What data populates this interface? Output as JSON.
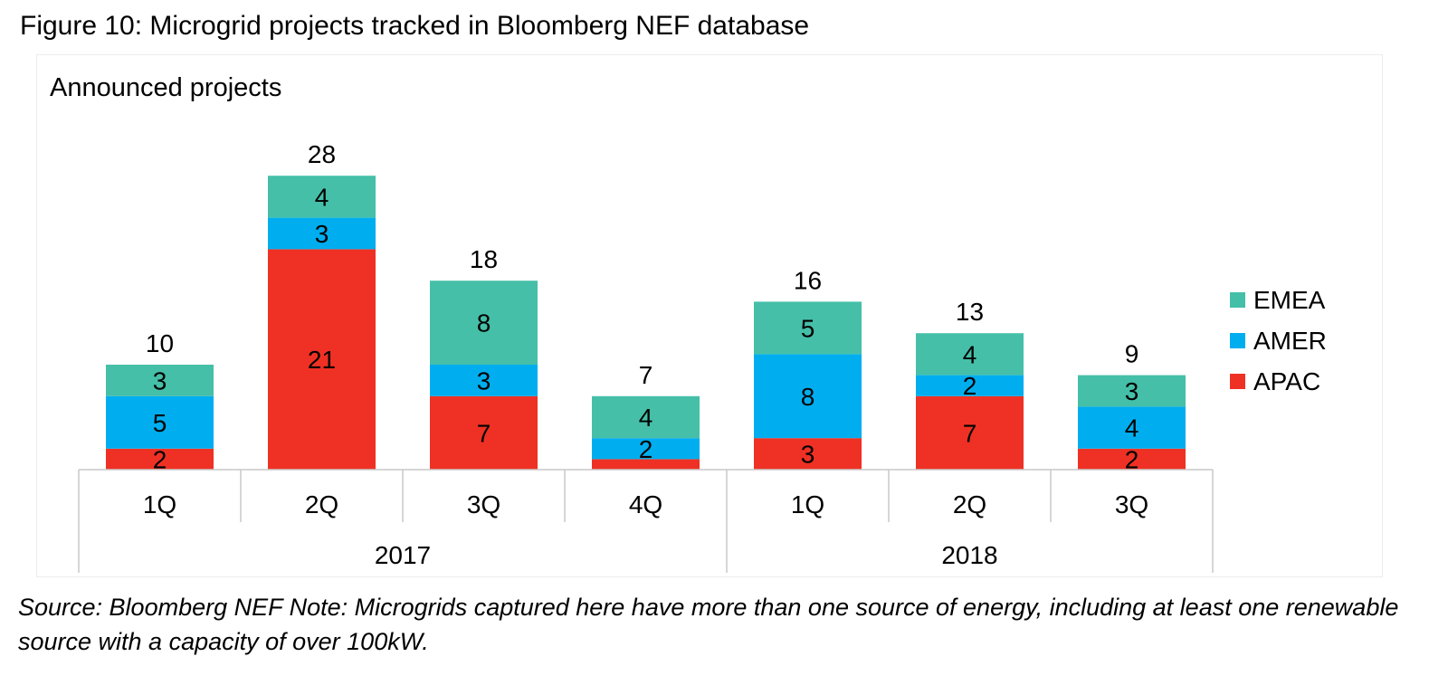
{
  "figure": {
    "title": "Figure 10: Microgrid projects tracked in Bloomberg NEF database",
    "source_note": "Source: Bloomberg NEF Note: Microgrids captured here have more than one source of energy, including at least one renewable source with a capacity of over 100kW."
  },
  "chart_data": {
    "type": "bar",
    "stacked": true,
    "ylabel": "Announced projects",
    "categories": [
      "1Q",
      "2Q",
      "3Q",
      "4Q",
      "1Q",
      "2Q",
      "3Q"
    ],
    "category_groups": [
      {
        "label": "2017",
        "count": 4
      },
      {
        "label": "2018",
        "count": 3
      }
    ],
    "totals": [
      10,
      28,
      18,
      7,
      16,
      13,
      9
    ],
    "series": [
      {
        "name": "APAC",
        "color": "#ee3124",
        "values": [
          2,
          21,
          7,
          1,
          3,
          7,
          2
        ],
        "labels": [
          "2",
          "21",
          "7",
          "",
          "3",
          "7",
          "2"
        ]
      },
      {
        "name": "AMER",
        "color": "#00aeef",
        "values": [
          5,
          3,
          3,
          2,
          8,
          2,
          4
        ],
        "labels": [
          "5",
          "3",
          "3",
          "2",
          "8",
          "2",
          "4"
        ]
      },
      {
        "name": "EMEA",
        "color": "#45bfa8",
        "values": [
          3,
          4,
          8,
          4,
          5,
          4,
          3
        ],
        "labels": [
          "3",
          "4",
          "8",
          "4",
          "5",
          "4",
          "3"
        ]
      }
    ],
    "legend_order": [
      "EMEA",
      "AMER",
      "APAC"
    ],
    "legend_position": "right",
    "grid": false
  }
}
